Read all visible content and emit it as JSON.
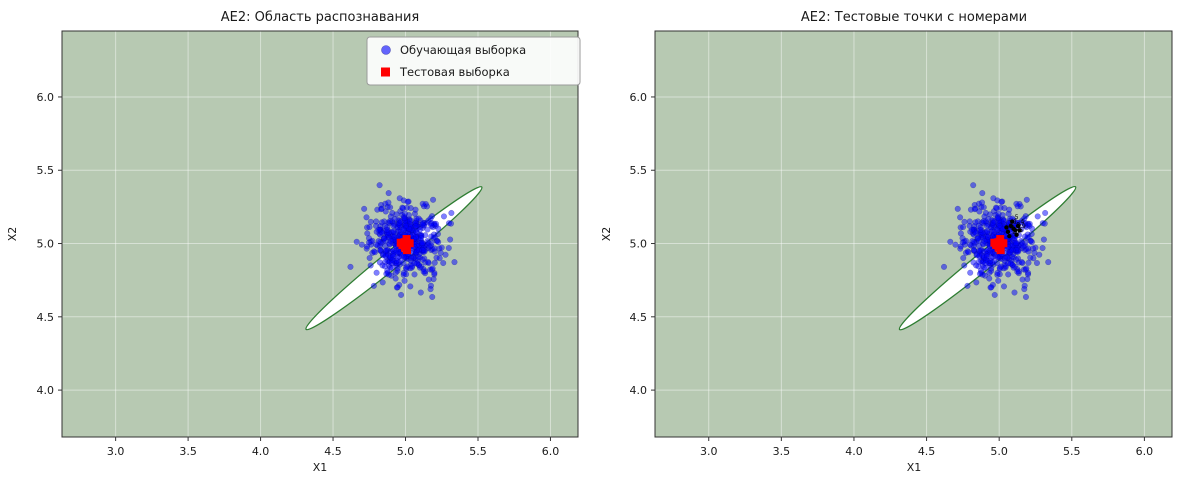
{
  "chart_data": [
    {
      "type": "scatter",
      "title": "AE2: Область распознавания",
      "xlabel": "X1",
      "ylabel": "X2",
      "xlim": [
        2.63,
        6.19
      ],
      "ylim": [
        3.68,
        6.45
      ],
      "xticks": [
        3.0,
        3.5,
        4.0,
        4.5,
        5.0,
        5.5,
        6.0
      ],
      "yticks": [
        4.0,
        4.5,
        5.0,
        5.5,
        6.0
      ],
      "grid": true,
      "background_color": "#b7c9b2",
      "grid_color": "#ffffff",
      "region": {
        "shape": "ellipse",
        "center": [
          4.92,
          4.9
        ],
        "semi_major": 0.78,
        "semi_minor": 0.06,
        "angle_deg": 39,
        "fill": "#ffffff",
        "edge": "#2e7d32"
      },
      "series": [
        {
          "name": "Обучающая выборка",
          "type": "gaussian_cluster",
          "center": [
            5.0,
            5.0
          ],
          "std": 0.12,
          "n": 500,
          "color": "#0000ff",
          "alpha": 0.5,
          "marker": "circle",
          "seed": 42
        },
        {
          "name": "Тестовая выборка",
          "type": "gaussian_cluster",
          "center": [
            5.0,
            5.0
          ],
          "std": 0.018,
          "n": 10,
          "color": "#ff0000",
          "alpha": 1,
          "marker": "square",
          "seed": 7
        }
      ],
      "legend": {
        "visible": true,
        "position": "upper right",
        "entries": [
          {
            "label": "Обучающая выборка",
            "marker": "circle",
            "color": "#0000ff"
          },
          {
            "label": "Тестовая выборка",
            "marker": "square",
            "color": "#ff0000"
          }
        ]
      }
    },
    {
      "type": "scatter",
      "title": "AE2: Тестовые точки с номерами",
      "xlabel": "X1",
      "ylabel": "X2",
      "xlim": [
        2.63,
        6.19
      ],
      "ylim": [
        3.68,
        6.45
      ],
      "xticks": [
        3.0,
        3.5,
        4.0,
        4.5,
        5.0,
        5.5,
        6.0
      ],
      "yticks": [
        4.0,
        4.5,
        5.0,
        5.5,
        6.0
      ],
      "grid": true,
      "background_color": "#b7c9b2",
      "grid_color": "#ffffff",
      "region": {
        "shape": "ellipse",
        "center": [
          4.92,
          4.9
        ],
        "semi_major": 0.78,
        "semi_minor": 0.06,
        "angle_deg": 39,
        "fill": "#ffffff",
        "edge": "#2e7d32"
      },
      "series": [
        {
          "name": "Обучающая выборка",
          "type": "gaussian_cluster",
          "center": [
            5.0,
            5.0
          ],
          "std": 0.12,
          "n": 500,
          "color": "#0000ff",
          "alpha": 0.5,
          "marker": "circle",
          "seed": 42
        },
        {
          "name": "Тестовая выборка",
          "type": "gaussian_cluster",
          "center": [
            5.0,
            5.0
          ],
          "std": 0.018,
          "n": 10,
          "color": "#ff0000",
          "alpha": 1,
          "marker": "square",
          "seed": 7
        },
        {
          "name": "Тестовые точки с номерами",
          "type": "labeled_points",
          "color": "#000000",
          "points": [
            {
              "x": 5.08,
              "y": 5.12,
              "label": "1"
            },
            {
              "x": 5.11,
              "y": 5.09,
              "label": "2"
            },
            {
              "x": 5.06,
              "y": 5.08,
              "label": "3"
            },
            {
              "x": 5.13,
              "y": 5.12,
              "label": "4"
            },
            {
              "x": 5.09,
              "y": 5.15,
              "label": "5"
            },
            {
              "x": 5.12,
              "y": 5.06,
              "label": "6"
            },
            {
              "x": 5.05,
              "y": 5.11,
              "label": "7"
            },
            {
              "x": 5.1,
              "y": 5.1,
              "label": "8"
            },
            {
              "x": 5.14,
              "y": 5.09,
              "label": "9"
            },
            {
              "x": 5.07,
              "y": 5.05,
              "label": "10"
            }
          ]
        }
      ],
      "legend": {
        "visible": false,
        "entries": []
      }
    }
  ]
}
